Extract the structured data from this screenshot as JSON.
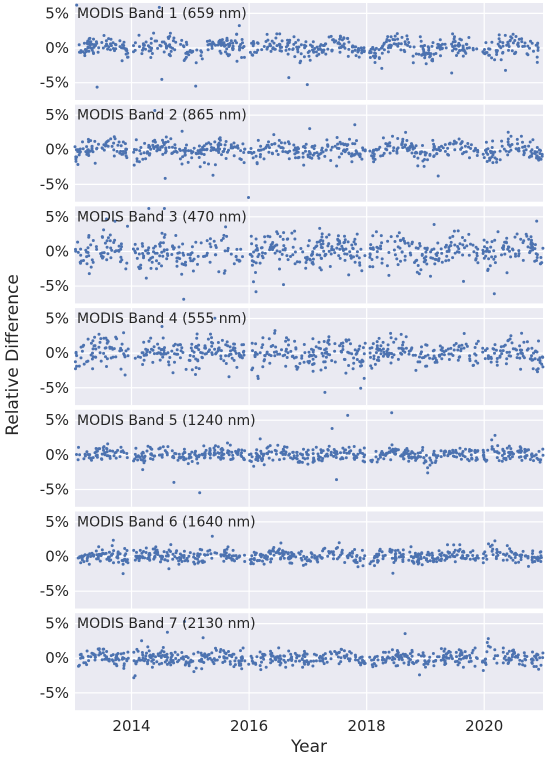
{
  "figure": {
    "xlabel": "Year",
    "ylabel": "Relative Difference"
  },
  "chart_data": {
    "type": "scatter",
    "xlim": [
      "2013-01-15",
      "2021-01-01"
    ],
    "ylim": [
      -7.5,
      6.5
    ],
    "x_ticks": [
      "2014-01-01",
      "2016-01-01",
      "2018-01-01",
      "2020-01-01"
    ],
    "x_tick_labels": [
      "2014",
      "2016",
      "2018",
      "2020"
    ],
    "y_ticks": [
      5,
      0,
      -5
    ],
    "y_tick_labels": [
      "5%",
      "0%",
      "-5%"
    ],
    "grid": true,
    "marker_color": "#4c72b0",
    "background_color": "#eaeaf2",
    "series": [
      {
        "title": "MODIS Band 1 (659 nm)",
        "base_noise": 0.75,
        "outlier_spread": 2.8,
        "note": ""
      },
      {
        "title": "MODIS Band 2 (865 nm)",
        "base_noise": 0.7,
        "outlier_spread": 2.6,
        "note": ""
      },
      {
        "title": "MODIS Band 3 (470 nm)",
        "base_noise": 1.3,
        "outlier_spread": 4.5,
        "note": ""
      },
      {
        "title": "MODIS Band 4 (555 nm)",
        "base_noise": 1.1,
        "outlier_spread": 4.0,
        "note": ""
      },
      {
        "title": "MODIS Band 5 (1240 nm)",
        "base_noise": 0.55,
        "outlier_spread": 2.0,
        "note": ""
      },
      {
        "title": "MODIS Band 6 (1640 nm)",
        "base_noise": 0.55,
        "outlier_spread": 2.0,
        "note": ""
      },
      {
        "title": "MODIS Band 7 (2130 nm)",
        "base_noise": 0.6,
        "outlier_spread": 2.2,
        "note": ""
      }
    ]
  }
}
